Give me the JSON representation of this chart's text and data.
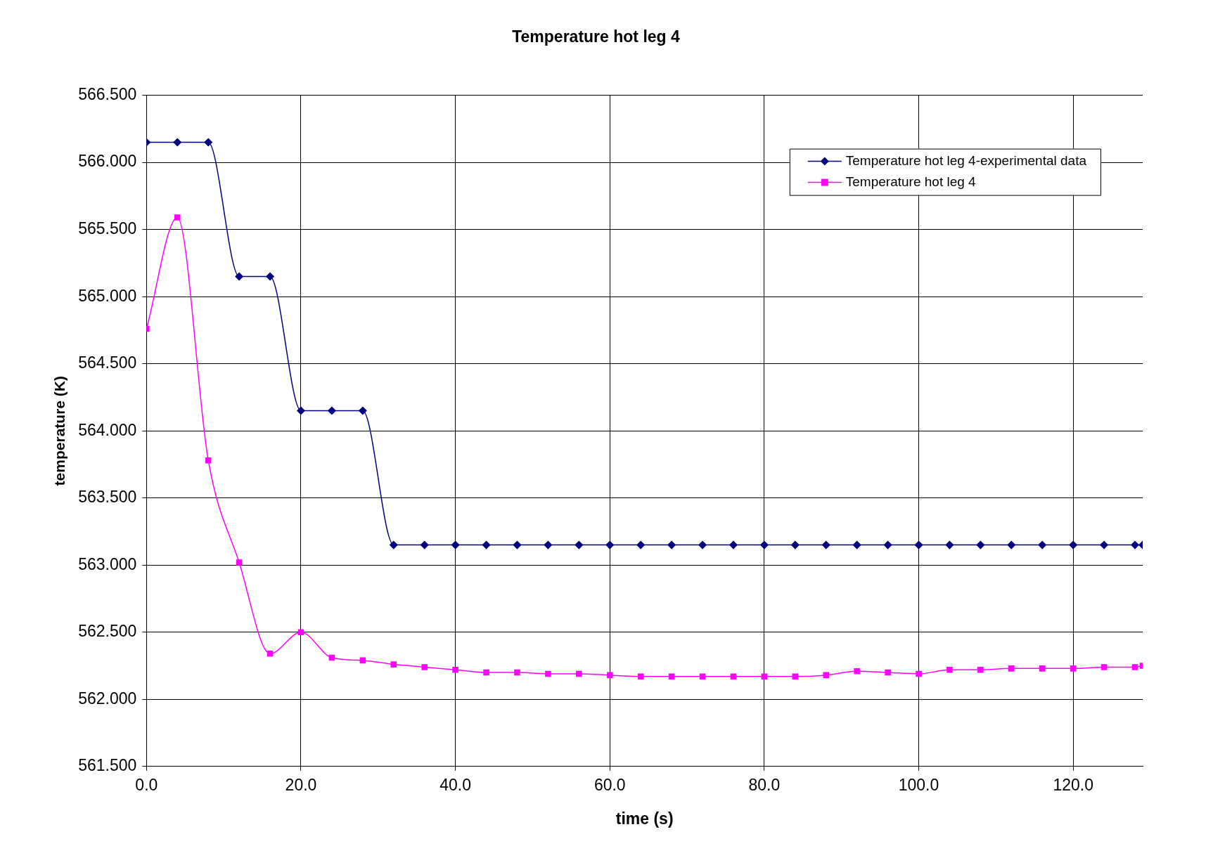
{
  "chart_data": {
    "type": "line",
    "title": "Temperature hot leg 4",
    "xlabel": "time (s)",
    "ylabel": "temperature (K)",
    "x": [
      0,
      4,
      8,
      12,
      16,
      20,
      24,
      28,
      32,
      36,
      40,
      44,
      48,
      52,
      56,
      60,
      64,
      68,
      72,
      76,
      80,
      84,
      88,
      92,
      96,
      100,
      104,
      108,
      112,
      116,
      120,
      124,
      128,
      129
    ],
    "series": [
      {
        "name": "Temperature hot leg 4-experimental data",
        "color": "#000080",
        "marker": "diamond",
        "values": [
          566.15,
          566.15,
          566.15,
          565.15,
          565.15,
          564.15,
          564.15,
          564.15,
          563.15,
          563.15,
          563.15,
          563.15,
          563.15,
          563.15,
          563.15,
          563.15,
          563.15,
          563.15,
          563.15,
          563.15,
          563.15,
          563.15,
          563.15,
          563.15,
          563.15,
          563.15,
          563.15,
          563.15,
          563.15,
          563.15,
          563.15,
          563.15,
          563.15,
          563.15
        ]
      },
      {
        "name": "Temperature hot leg 4",
        "color": "#ff00ff",
        "marker": "square",
        "values": [
          564.76,
          565.59,
          563.78,
          563.02,
          562.34,
          562.5,
          562.31,
          562.29,
          562.26,
          562.24,
          562.22,
          562.2,
          562.2,
          562.19,
          562.19,
          562.18,
          562.17,
          562.17,
          562.17,
          562.17,
          562.17,
          562.17,
          562.18,
          562.21,
          562.2,
          562.19,
          562.22,
          562.22,
          562.23,
          562.23,
          562.23,
          562.24,
          562.24,
          562.25
        ]
      }
    ],
    "xlim": [
      0,
      129
    ],
    "xticks": [
      {
        "value": 0,
        "label": "0.0"
      },
      {
        "value": 20,
        "label": "20.0"
      },
      {
        "value": 40,
        "label": "40.0"
      },
      {
        "value": 60,
        "label": "60.0"
      },
      {
        "value": 80,
        "label": "80.0"
      },
      {
        "value": 100,
        "label": "100.0"
      },
      {
        "value": 120,
        "label": "120.0"
      }
    ],
    "ylim": [
      561.5,
      566.5
    ],
    "yticks": [
      {
        "value": 561.5,
        "label": "561.500"
      },
      {
        "value": 562,
        "label": "562.000"
      },
      {
        "value": 562.5,
        "label": "562.500"
      },
      {
        "value": 563,
        "label": "563.000"
      },
      {
        "value": 563.5,
        "label": "563.500"
      },
      {
        "value": 564,
        "label": "564.000"
      },
      {
        "value": 564.5,
        "label": "564.500"
      },
      {
        "value": 565,
        "label": "565.000"
      },
      {
        "value": 565.5,
        "label": "565.500"
      },
      {
        "value": 566,
        "label": "566.000"
      },
      {
        "value": 566.5,
        "label": "566.500"
      }
    ],
    "grid": true,
    "legend": "top right",
    "line_style": "solid"
  }
}
